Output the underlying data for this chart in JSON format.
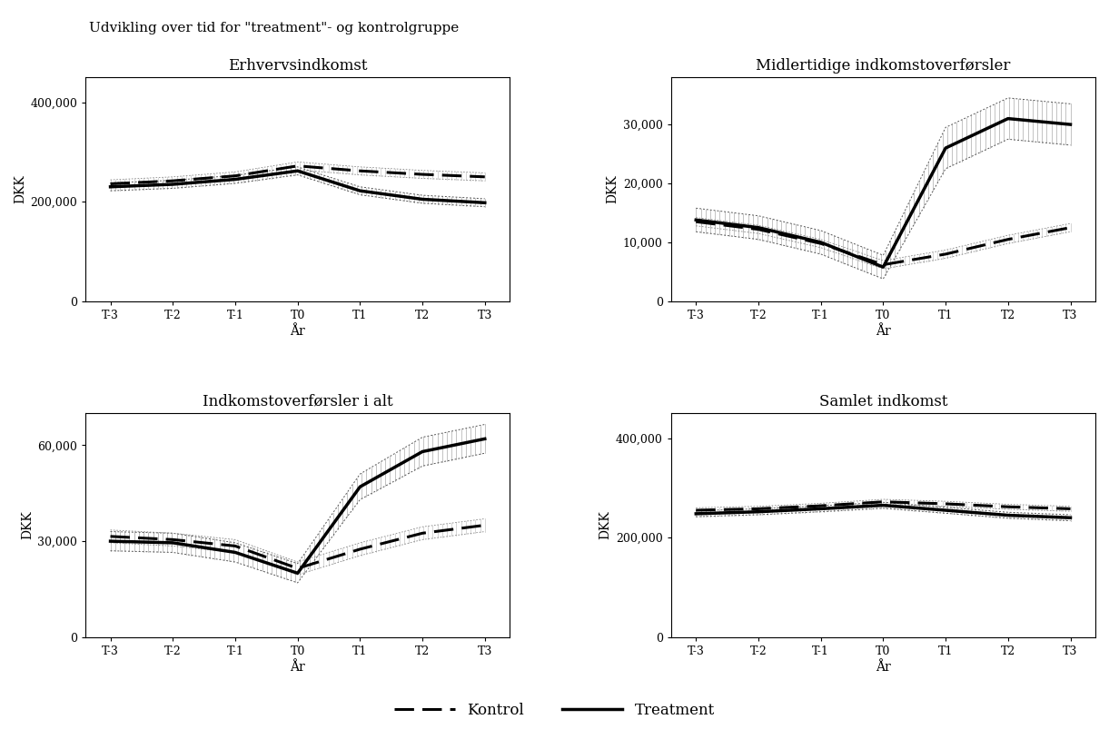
{
  "suptitle": "Udvikling over tid for \"treatment\"- og kontrolgruppe",
  "x_labels": [
    "T-3",
    "T-2",
    "T-1",
    "T0",
    "T1",
    "T2",
    "T3"
  ],
  "x_vals": [
    0,
    1,
    2,
    3,
    4,
    5,
    6
  ],
  "subplots": [
    {
      "title": "Erhvervsindkomst",
      "ylabel": "DKK",
      "xlabel": "År",
      "ylim": [
        0,
        450000
      ],
      "yticks": [
        0,
        200000,
        400000
      ],
      "ytick_labels": [
        "0",
        "200,000",
        "400,000"
      ],
      "treatment": [
        230000,
        235000,
        245000,
        262000,
        222000,
        205000,
        198000
      ],
      "treatment_upper": [
        238000,
        243000,
        253000,
        270000,
        230000,
        213000,
        206000
      ],
      "treatment_lower": [
        222000,
        227000,
        237000,
        254000,
        214000,
        197000,
        190000
      ],
      "kontrol": [
        236000,
        242000,
        252000,
        272000,
        262000,
        255000,
        250000
      ],
      "kontrol_upper": [
        244000,
        250000,
        260000,
        280000,
        270000,
        263000,
        258000
      ],
      "kontrol_lower": [
        228000,
        234000,
        244000,
        264000,
        254000,
        247000,
        242000
      ]
    },
    {
      "title": "Midlertidige indkomstoverførsler",
      "ylabel": "DKK",
      "xlabel": "År",
      "ylim": [
        0,
        38000
      ],
      "yticks": [
        0,
        10000,
        20000,
        30000
      ],
      "ytick_labels": [
        "0",
        "10,000",
        "20,000",
        "30,000"
      ],
      "treatment": [
        13800,
        12500,
        10000,
        5800,
        26000,
        31000,
        30000
      ],
      "treatment_upper": [
        15800,
        14500,
        12000,
        7800,
        29500,
        34500,
        33500
      ],
      "treatment_lower": [
        11800,
        10500,
        8000,
        3800,
        22500,
        27500,
        26500
      ],
      "kontrol": [
        13500,
        12200,
        9800,
        6200,
        8000,
        10500,
        12500
      ],
      "kontrol_upper": [
        14200,
        12900,
        10500,
        6900,
        8700,
        11200,
        13200
      ],
      "kontrol_lower": [
        12800,
        11500,
        9100,
        5500,
        7300,
        9800,
        11800
      ]
    },
    {
      "title": "Indkomstoverførsler i alt",
      "ylabel": "DKK",
      "xlabel": "År",
      "ylim": [
        0,
        70000
      ],
      "yticks": [
        0,
        30000,
        60000
      ],
      "ytick_labels": [
        "0",
        "30,000",
        "60,000"
      ],
      "treatment": [
        30000,
        29500,
        26500,
        20000,
        47000,
        58000,
        62000
      ],
      "treatment_upper": [
        33000,
        32500,
        29500,
        23000,
        51000,
        62500,
        66500
      ],
      "treatment_lower": [
        27000,
        26500,
        23500,
        17000,
        43000,
        53500,
        57500
      ],
      "kontrol": [
        31500,
        30500,
        28500,
        21500,
        27500,
        32500,
        35000
      ],
      "kontrol_upper": [
        33500,
        32500,
        30500,
        23500,
        29500,
        34500,
        37000
      ],
      "kontrol_lower": [
        29500,
        28500,
        26500,
        19500,
        25500,
        30500,
        33000
      ]
    },
    {
      "title": "Samlet indkomst",
      "ylabel": "DKK",
      "xlabel": "År",
      "ylim": [
        0,
        450000
      ],
      "yticks": [
        0,
        200000,
        400000
      ],
      "ytick_labels": [
        "0",
        "200,000",
        "400,000"
      ],
      "treatment": [
        248000,
        252000,
        258000,
        265000,
        255000,
        245000,
        240000
      ],
      "treatment_upper": [
        254000,
        258000,
        264000,
        271000,
        261000,
        251000,
        246000
      ],
      "treatment_lower": [
        242000,
        246000,
        252000,
        259000,
        249000,
        239000,
        234000
      ],
      "kontrol": [
        255000,
        258000,
        264000,
        272000,
        268000,
        262000,
        258000
      ],
      "kontrol_upper": [
        260000,
        263000,
        269000,
        277000,
        273000,
        267000,
        263000
      ],
      "kontrol_lower": [
        250000,
        253000,
        259000,
        267000,
        263000,
        257000,
        253000
      ]
    }
  ]
}
